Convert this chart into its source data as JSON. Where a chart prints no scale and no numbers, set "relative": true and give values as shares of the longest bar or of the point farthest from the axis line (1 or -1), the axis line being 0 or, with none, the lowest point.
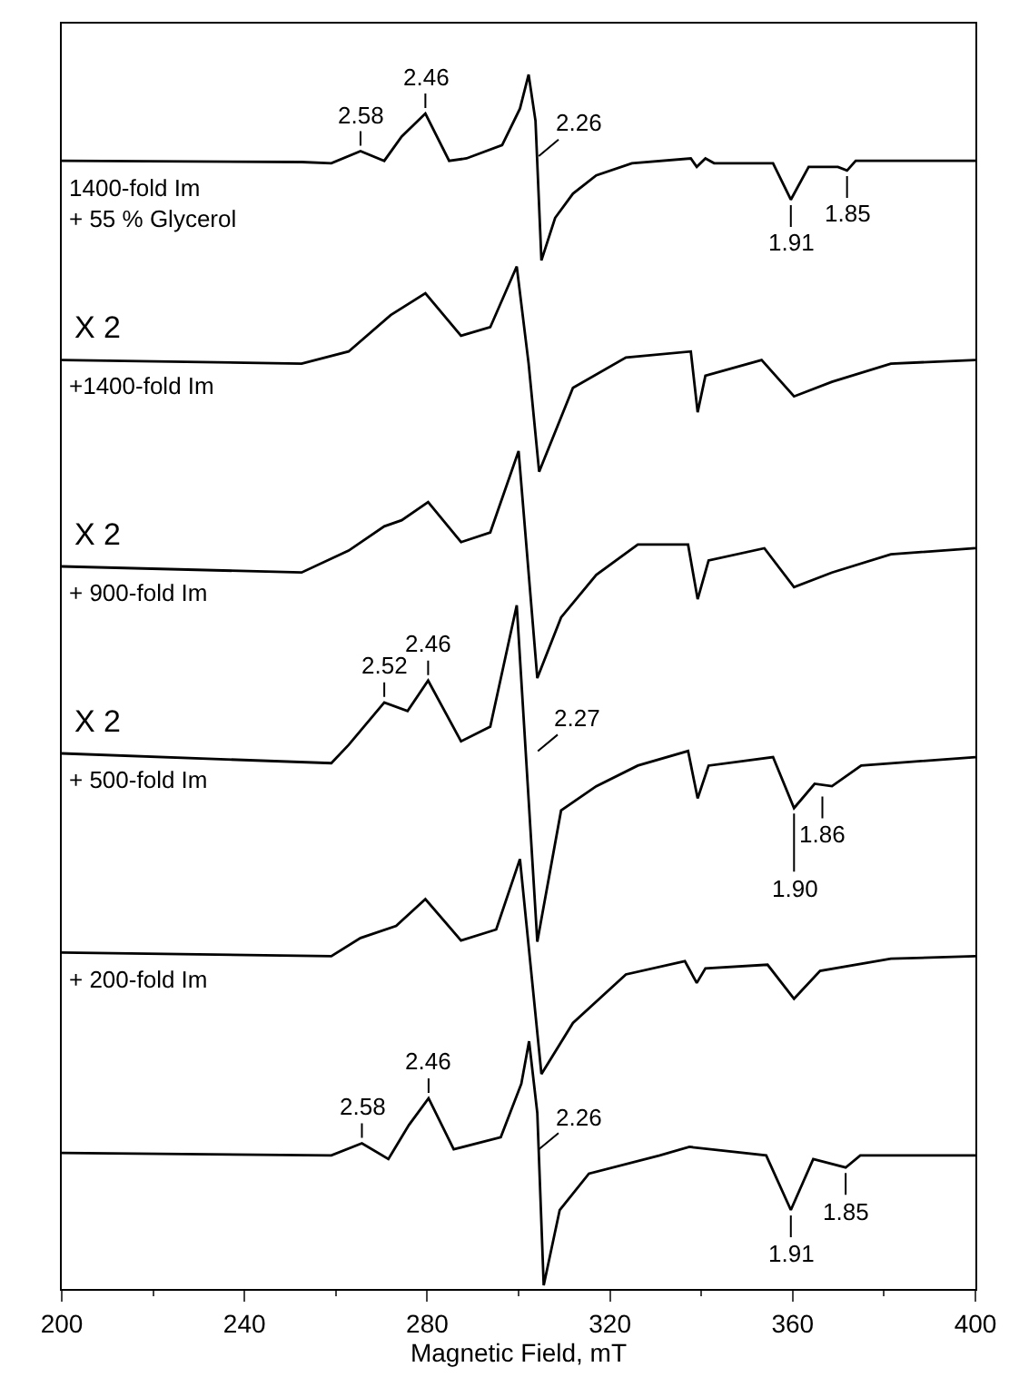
{
  "chart_data": {
    "type": "line",
    "relative": true,
    "xlabel": "Magnetic Field, mT",
    "xlim": [
      200,
      400
    ],
    "xticks": [
      200,
      240,
      280,
      320,
      360,
      400
    ],
    "marker": "none",
    "line_style": "solid",
    "series": [
      {
        "name": "1400-fold Im\n+ 55 % Glycerol",
        "color": "#000000",
        "x": [
          200,
          252.5,
          259,
          265.4,
          270.6,
          274.4,
          279.6,
          284.8,
          288.6,
          296.4,
          300.3,
          302.2,
          303.7,
          305.0,
          308,
          311.9,
          317,
          324.8,
          337.7,
          339,
          340.9,
          342.8,
          355.7,
          359.6,
          363.5,
          369.9,
          371.9,
          373.8,
          395.7,
          400
        ],
        "values": [
          0.929,
          0.928,
          0.927,
          0.937,
          0.929,
          0.949,
          0.968,
          0.929,
          0.931,
          0.942,
          0.972,
          1.0,
          0.962,
          0.847,
          0.882,
          0.902,
          0.917,
          0.927,
          0.931,
          0.924,
          0.931,
          0.927,
          0.927,
          0.897,
          0.924,
          0.924,
          0.921,
          0.929,
          0.929,
          0.929
        ]
      },
      {
        "name": "+1400-fold Im",
        "color": "#000000",
        "x": [
          200,
          252.5,
          262.8,
          272,
          279.6,
          287.4,
          293.8,
          299.6,
          302.2,
          304.5,
          311.9,
          323.5,
          337.7,
          339.2,
          340.9,
          353.2,
          360.3,
          368.6,
          381.5,
          400
        ],
        "values": [
          0.765,
          0.762,
          0.772,
          0.802,
          0.82,
          0.785,
          0.792,
          0.842,
          0.762,
          0.673,
          0.742,
          0.767,
          0.772,
          0.722,
          0.752,
          0.765,
          0.735,
          0.747,
          0.762,
          0.765
        ]
      },
      {
        "name": "+ 900-fold Im",
        "color": "#000000",
        "x": [
          200,
          252.5,
          262.8,
          270.6,
          274.4,
          280.2,
          287.4,
          293.8,
          300,
          304.1,
          309.3,
          317,
          326.1,
          337.1,
          339.2,
          341.6,
          353.8,
          360.3,
          368.6,
          381.5,
          400
        ],
        "values": [
          0.595,
          0.59,
          0.608,
          0.628,
          0.633,
          0.648,
          0.615,
          0.623,
          0.69,
          0.503,
          0.553,
          0.588,
          0.613,
          0.613,
          0.568,
          0.6,
          0.61,
          0.578,
          0.59,
          0.605,
          0.61
        ]
      },
      {
        "name": "+ 500-fold Im",
        "color": "#000000",
        "x": [
          200,
          259,
          262.8,
          270.6,
          275.7,
          280.2,
          287.4,
          293.8,
          299.6,
          304.1,
          309.3,
          317,
          326.1,
          337.1,
          339.2,
          341.6,
          355.7,
          360.3,
          364.8,
          368.6,
          375,
          400
        ],
        "values": [
          0.441,
          0.433,
          0.448,
          0.483,
          0.476,
          0.501,
          0.451,
          0.463,
          0.563,
          0.286,
          0.394,
          0.414,
          0.431,
          0.443,
          0.404,
          0.431,
          0.438,
          0.396,
          0.416,
          0.414,
          0.431,
          0.438
        ]
      },
      {
        "name": "+ 200-fold Im",
        "color": "#000000",
        "x": [
          200,
          259,
          265.4,
          273.2,
          279.6,
          287.4,
          295.1,
          300.3,
          305,
          311.9,
          323.5,
          336.4,
          339,
          340.9,
          354.5,
          360.3,
          366,
          381.5,
          400
        ],
        "values": [
          0.277,
          0.274,
          0.289,
          0.299,
          0.321,
          0.287,
          0.296,
          0.354,
          0.177,
          0.219,
          0.259,
          0.27,
          0.252,
          0.264,
          0.267,
          0.239,
          0.262,
          0.272,
          0.274
        ]
      },
      {
        "color": "#000000",
        "x": [
          200,
          259,
          265.7,
          271.5,
          276,
          280.3,
          285.8,
          296.1,
          300.6,
          302.3,
          304.1,
          305.5,
          309,
          315.4,
          330.9,
          337.4,
          354.2,
          359.6,
          364.5,
          371.6,
          374.8,
          400
        ],
        "values": [
          0.112,
          0.11,
          0.12,
          0.107,
          0.135,
          0.157,
          0.115,
          0.125,
          0.169,
          0.204,
          0.145,
          0.003,
          0.065,
          0.095,
          0.11,
          0.117,
          0.11,
          0.065,
          0.107,
          0.1,
          0.11,
          0.11
        ]
      }
    ],
    "annotations": [
      "X 2",
      "X 2",
      "X 2",
      {
        "text": "2.58",
        "x": 265.4,
        "y": 0.937
      },
      {
        "text": "2.46",
        "x": 279.6,
        "y": 0.968
      },
      {
        "text": "2.26",
        "x": 303.5,
        "y": 0.93
      },
      {
        "text": "1.91",
        "x": 359.6,
        "y": 0.897
      },
      {
        "text": "1.85",
        "x": 371.9,
        "y": 0.921
      },
      {
        "text": "2.52",
        "x": 270.6,
        "y": 0.483
      },
      {
        "text": "2.46",
        "x": 280.2,
        "y": 0.501
      },
      {
        "text": "2.27",
        "x": 303.3,
        "y": 0.44
      },
      {
        "text": "1.90",
        "x": 360.3,
        "y": 0.396
      },
      {
        "text": "1.86",
        "x": 366.5,
        "y": 0.41
      },
      {
        "text": "2.58",
        "x": 265.7,
        "y": 0.12
      },
      {
        "text": "2.46",
        "x": 280.3,
        "y": 0.157
      },
      {
        "text": "2.26",
        "x": 303.5,
        "y": 0.112
      },
      {
        "text": "1.91",
        "x": 359.6,
        "y": 0.065
      },
      {
        "text": "1.85",
        "x": 371.6,
        "y": 0.1
      }
    ]
  }
}
